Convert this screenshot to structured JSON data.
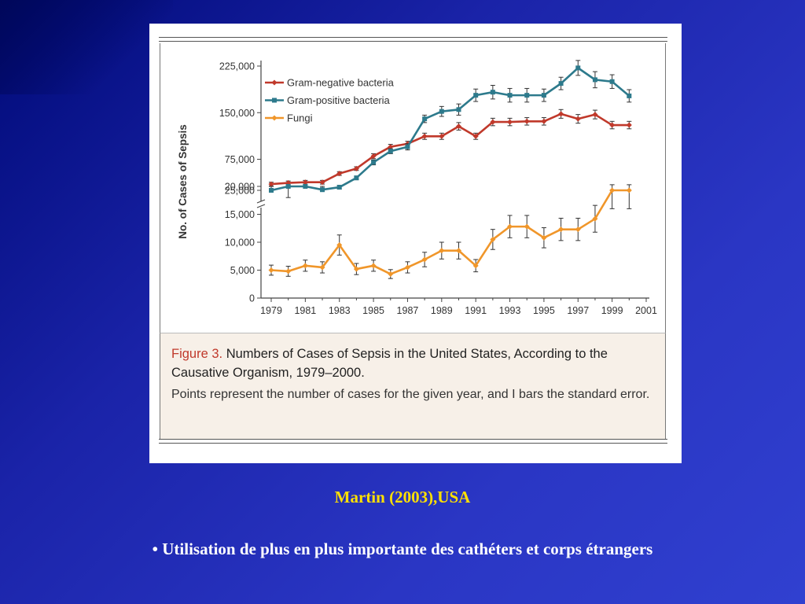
{
  "chart_data": {
    "type": "line",
    "figure_label": "Figure 3.",
    "title": "Numbers of Cases of Sepsis in the United States, According to the Causative Organism, 1979–2000.",
    "caption": "Points represent the number of cases for the given year, and I bars the standard error.",
    "ylabel": "No. of Cases of Sepsis",
    "xlabel": "",
    "x_ticks": [
      "1979",
      "1981",
      "1983",
      "1985",
      "1987",
      "1989",
      "1991",
      "1993",
      "1995",
      "1997",
      "1999",
      "2001"
    ],
    "y_ticks_lower": [
      "0",
      "5,000",
      "10,000",
      "15,000",
      "20,000"
    ],
    "y_ticks_upper": [
      "25,000",
      "75,000",
      "150,000",
      "225,000"
    ],
    "y_scale": "broken axis: 0–20,000 linear below the break, 25,000–225,000 above",
    "x": [
      1979,
      1980,
      1981,
      1982,
      1983,
      1984,
      1985,
      1986,
      1987,
      1988,
      1989,
      1990,
      1991,
      1992,
      1993,
      1994,
      1995,
      1996,
      1997,
      1998,
      1999,
      2000
    ],
    "legend_position": "top-left",
    "series": [
      {
        "name": "Gram-negative bacteria",
        "color": "#c0392b",
        "marker": "diamond",
        "values": [
          35000,
          37000,
          38000,
          38000,
          52000,
          60000,
          80000,
          95000,
          100000,
          112000,
          112000,
          128000,
          112000,
          135000,
          135000,
          136000,
          136000,
          148000,
          140000,
          147000,
          130000,
          130000
        ],
        "error": [
          3000,
          3000,
          3000,
          3000,
          3000,
          3000,
          4000,
          4000,
          4000,
          5000,
          5000,
          6000,
          5000,
          6000,
          6000,
          6000,
          6000,
          7000,
          7000,
          7000,
          6000,
          6000
        ]
      },
      {
        "name": "Gram-positive bacteria",
        "color": "#2d7a8c",
        "marker": "square",
        "values": [
          25000,
          20000,
          22000,
          26000,
          30000,
          45000,
          70000,
          88000,
          95000,
          140000,
          152000,
          155000,
          178000,
          183000,
          178000,
          178000,
          178000,
          197000,
          222000,
          203000,
          200000,
          177000
        ],
        "error": [
          3000,
          2000,
          2000,
          3000,
          3000,
          3000,
          4000,
          4000,
          5000,
          6000,
          8000,
          9000,
          10000,
          11000,
          11000,
          11000,
          10000,
          10000,
          12000,
          13000,
          11000,
          10000
        ]
      },
      {
        "name": "Fungi",
        "color": "#f0962a",
        "marker": "diamond",
        "values": [
          5000,
          4800,
          5800,
          5500,
          9500,
          5200,
          5800,
          4300,
          5500,
          6900,
          8500,
          8500,
          5800,
          10500,
          12800,
          12800,
          10800,
          12300,
          12300,
          14200,
          25000,
          25000
        ],
        "error": [
          900,
          900,
          1000,
          1000,
          1800,
          1000,
          1000,
          800,
          1000,
          1300,
          1500,
          1500,
          1100,
          1800,
          2000,
          2000,
          1800,
          2000,
          2000,
          2400,
          9000,
          9000
        ]
      }
    ]
  },
  "slide": {
    "source": "Martin (2003),USA",
    "bullet": "• Utilisation de plus en plus importante des cathéters et corps étrangers"
  }
}
